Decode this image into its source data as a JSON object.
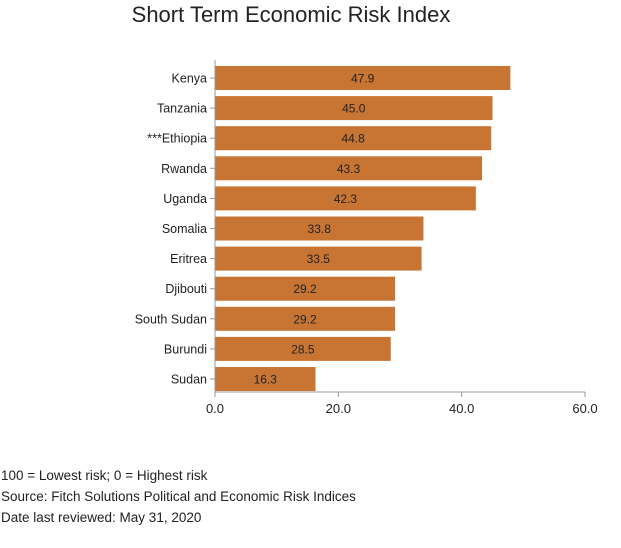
{
  "chart_data": {
    "type": "bar",
    "orientation": "horizontal",
    "title": "Short Term Economic Risk Index",
    "categories": [
      "Kenya",
      "Tanzania",
      "***Ethiopia",
      "Rwanda",
      "Uganda",
      "Somalia",
      "Eritrea",
      "Djibouti",
      "South Sudan",
      "Burundi",
      "Sudan"
    ],
    "values": [
      47.9,
      45.0,
      44.8,
      43.3,
      42.3,
      33.8,
      33.5,
      29.2,
      29.2,
      28.5,
      16.3
    ],
    "value_labels": [
      "47.9",
      "45.0",
      "44.8",
      "43.3",
      "42.3",
      "33.8",
      "33.5",
      "29.2",
      "29.2",
      "28.5",
      "16.3"
    ],
    "xlim": [
      0,
      60
    ],
    "xticks": [
      "0.0",
      "20.0",
      "40.0",
      "60.0"
    ],
    "xtick_values": [
      0,
      20,
      40,
      60
    ],
    "bar_color": "#c87533",
    "grid": false,
    "legend": "none"
  },
  "footnotes": {
    "scale_note": "100 = Lowest risk; 0 = Highest risk",
    "source": "Source: Fitch Solutions Political and Economic Risk Indices",
    "reviewed": "Date last reviewed: May 31, 2020"
  }
}
